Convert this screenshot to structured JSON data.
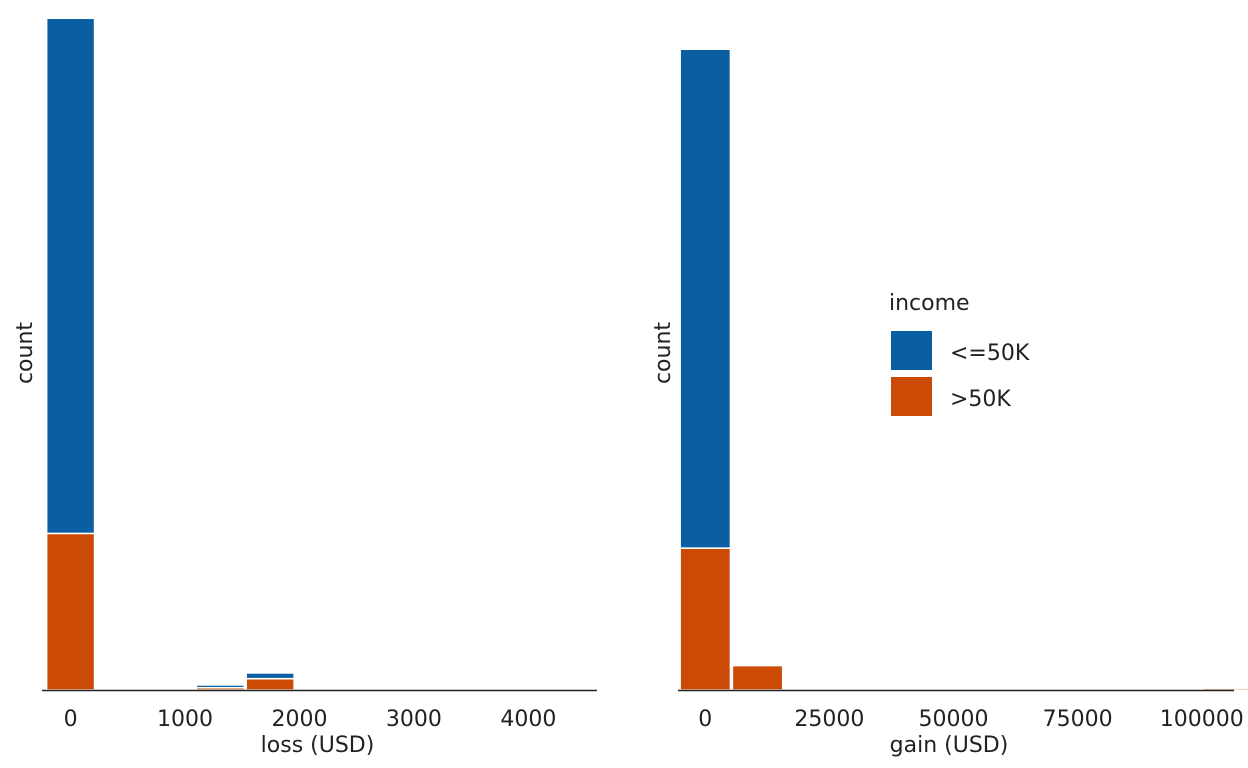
{
  "legend": {
    "title": "income",
    "placement": "right",
    "entries": [
      {
        "label": "<=50K",
        "color": "#0a5fa3"
      },
      {
        "label": ">50K",
        "color": "#cb4a06"
      }
    ]
  },
  "chart_data": [
    {
      "type": "bar",
      "stacked": true,
      "grid": false,
      "xlabel": "loss (USD)",
      "ylabel": "count",
      "xlim": [
        -250,
        4600
      ],
      "ylim": [
        0,
        2970
      ],
      "x_ticks": [
        "0",
        "1000",
        "2000",
        "3000",
        "4000"
      ],
      "bin_edges": [
        -218,
        218,
        654,
        1090,
        1526,
        1962,
        2398,
        2834,
        3270,
        3706,
        4142,
        4578
      ],
      "series": [
        {
          "name": "<=50K",
          "values": [
            2270,
            0,
            0,
            12,
            25,
            0,
            0,
            0,
            0,
            0,
            0
          ]
        },
        {
          "name": ">50K",
          "values": [
            690,
            0,
            0,
            10,
            50,
            0,
            0,
            0,
            0,
            0,
            0
          ]
        }
      ]
    },
    {
      "type": "bar",
      "stacked": true,
      "grid": false,
      "xlabel": "gain (USD)",
      "ylabel": "count",
      "xlim": [
        -5500,
        106500
      ],
      "ylim": [
        0,
        3040
      ],
      "x_ticks": [
        "0",
        "25000",
        "50000",
        "75000",
        "100000"
      ],
      "bin_edges": [
        -5263,
        5263,
        15789,
        26315,
        36841,
        47367,
        57893,
        68419,
        78945,
        89471,
        99997,
        110523
      ],
      "series": [
        {
          "name": "<=50K",
          "values": [
            2250,
            0,
            0,
            0,
            0,
            0,
            0,
            0,
            0,
            0,
            0
          ]
        },
        {
          "name": ">50K",
          "values": [
            640,
            110,
            0,
            0,
            0,
            0,
            0,
            0,
            0,
            0,
            8
          ]
        }
      ]
    }
  ]
}
